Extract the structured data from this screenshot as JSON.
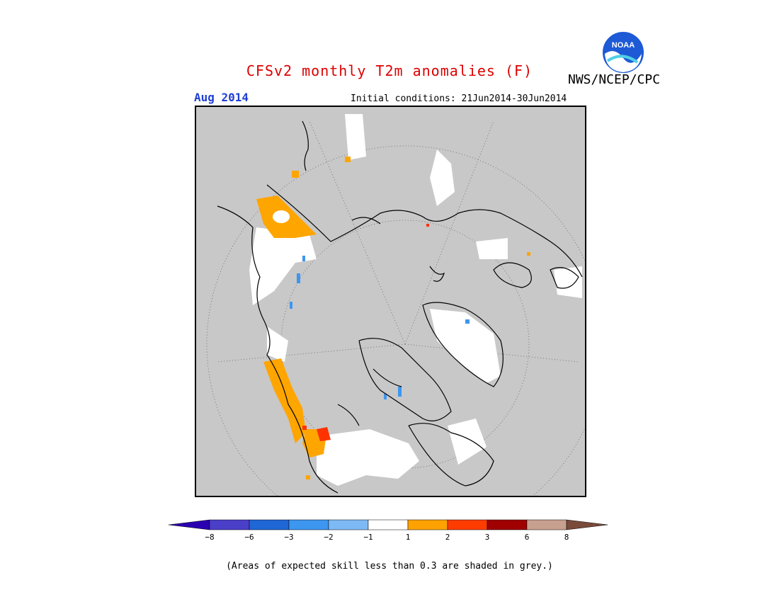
{
  "header": {
    "title": "CFSv2 monthly T2m anomalies (F)",
    "title_color": "#dd0000",
    "agency": "NWS/NCEP/CPC",
    "logo_text": "NOAA",
    "month": "Aug 2014",
    "month_color": "#1f3fd4",
    "init_conditions": "Initial conditions: 21Jun2014-30Jun2014"
  },
  "map": {
    "projection": "north polar stereographic",
    "background_color": "#c8c8c8",
    "regions": [
      {
        "name": "alaska-coast",
        "color": "#ffa500"
      },
      {
        "name": "siberia-east",
        "color": "#ffa500"
      },
      {
        "name": "pacific-northwest",
        "color": "#ffa500"
      },
      {
        "name": "canada-prairies",
        "color": "#ffffff"
      },
      {
        "name": "greenland",
        "color": "#ffffff"
      },
      {
        "name": "scandinavia",
        "color": "#ffffff"
      },
      {
        "name": "bc-hotspot",
        "color": "#ff3300"
      }
    ]
  },
  "legend": {
    "colors": [
      "#2a00b0",
      "#4a3fc8",
      "#1f66d6",
      "#3d96ef",
      "#7dbaf5",
      "#ffffff",
      "#ffa200",
      "#ff3c00",
      "#a00000",
      "#c8a090",
      "#7a4a3a"
    ],
    "ticks": [
      "−8",
      "−6",
      "−3",
      "−2",
      "−1",
      "1",
      "2",
      "3",
      "6",
      "8"
    ]
  },
  "footer": {
    "note": "(Areas of expected skill less than 0.3 are shaded in grey.)"
  }
}
